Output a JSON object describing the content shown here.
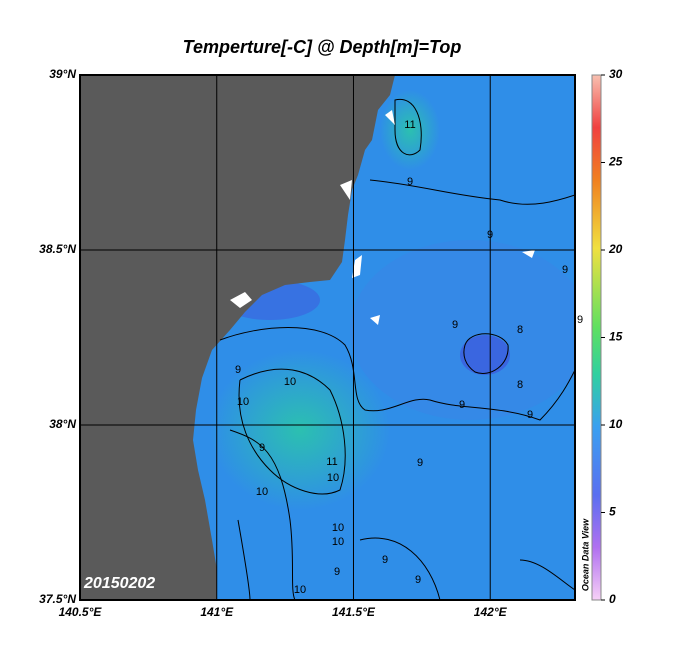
{
  "title": "Temperture[-C] @ Depth[m]=Top",
  "map": {
    "xlim": [
      140.5,
      142.31
    ],
    "ylim": [
      37.5,
      39
    ],
    "lon_ticks": [
      {
        "value": 140.5,
        "label": "140.5°E"
      },
      {
        "value": 141,
        "label": "141°E"
      },
      {
        "value": 141.5,
        "label": "141.5°E"
      },
      {
        "value": 142,
        "label": "142°E"
      }
    ],
    "lat_ticks": [
      {
        "value": 37.5,
        "label": "37.5°N"
      },
      {
        "value": 38,
        "label": "38°N"
      },
      {
        "value": 38.5,
        "label": "38.5°N"
      },
      {
        "value": 39,
        "label": "39°N"
      }
    ],
    "date": "20150202",
    "contour_labels": [
      "11",
      "9",
      "9",
      "9",
      "9",
      "8",
      "9",
      "8",
      "9",
      "10",
      "10",
      "9",
      "10",
      "9",
      "11",
      "10",
      "10",
      "10",
      "10",
      "9",
      "9",
      "9",
      "9",
      "9"
    ]
  },
  "colorbar": {
    "lim": [
      0,
      30
    ],
    "ticks": [
      0,
      5,
      10,
      15,
      20,
      25,
      30
    ]
  },
  "watermark": "Ocean Data View"
}
